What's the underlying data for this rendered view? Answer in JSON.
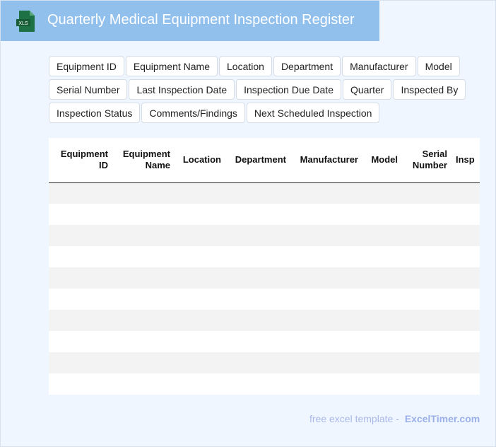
{
  "header": {
    "title": "Quarterly Medical Equipment Inspection Register",
    "icon": "xls-file-icon",
    "icon_label": "XLS",
    "bg_color": "#92c0ec"
  },
  "fields": [
    "Equipment ID",
    "Equipment Name",
    "Location",
    "Department",
    "Manufacturer",
    "Model",
    "Serial Number",
    "Last Inspection Date",
    "Inspection Due Date",
    "Quarter",
    "Inspected By",
    "Inspection Status",
    "Comments/Findings",
    "Next Scheduled Inspection"
  ],
  "table": {
    "columns": [
      "Equipment ID",
      "Equipment Name",
      "Location",
      "Department",
      "Manufacturer",
      "Model",
      "Serial Number",
      "Insp"
    ],
    "row_count": 10
  },
  "footer": {
    "text": "free excel template -",
    "brand": "ExcelTimer.com"
  }
}
